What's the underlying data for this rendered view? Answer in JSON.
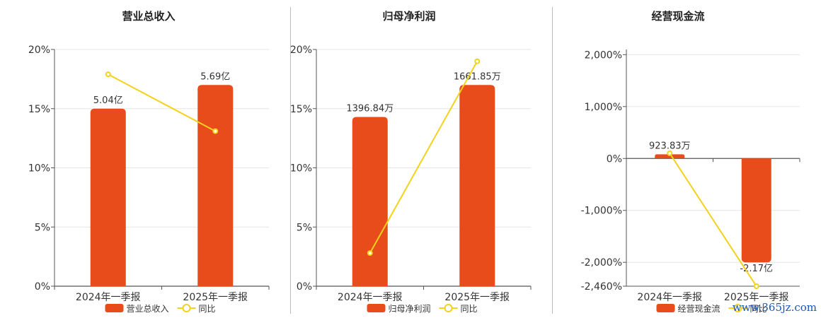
{
  "colors": {
    "bar": "#e84c1a",
    "line": "#f2d21b",
    "grid": "#e6e6e6",
    "axis": "#555555",
    "text": "#333333"
  },
  "watermark": "www.365jz.com",
  "chart_data": [
    {
      "type": "bar",
      "title": "营业总收入",
      "categories": [
        "2024年一季报",
        "2025年一季报"
      ],
      "ylim": [
        0,
        20
      ],
      "yticks": [
        0,
        5,
        10,
        15,
        20
      ],
      "ytick_labels": [
        "0%",
        "5%",
        "10%",
        "15%",
        "20%"
      ],
      "bar_values": [
        15.0,
        17.0
      ],
      "bar_labels": [
        "5.04亿",
        "5.69亿"
      ],
      "line_values": [
        17.9,
        13.1
      ],
      "legend": [
        "营业总收入",
        "同比"
      ],
      "legend_position": "bottom-center",
      "grid": true
    },
    {
      "type": "bar",
      "title": "归母净利润",
      "categories": [
        "2024年一季报",
        "2025年一季报"
      ],
      "ylim": [
        0,
        20
      ],
      "yticks": [
        0,
        5,
        10,
        15,
        20
      ],
      "ytick_labels": [
        "0%",
        "5%",
        "10%",
        "15%",
        "20%"
      ],
      "bar_values": [
        14.3,
        17.0
      ],
      "bar_labels": [
        "1396.84万",
        "1661.85万"
      ],
      "line_values": [
        2.8,
        19.0
      ],
      "legend": [
        "归母净利润",
        "同比"
      ],
      "legend_position": "bottom-center",
      "grid": true
    },
    {
      "type": "bar",
      "title": "经营现金流",
      "categories": [
        "2024年一季报",
        "2025年一季报"
      ],
      "ylim": [
        -2460,
        2100
      ],
      "yticks": [
        2000,
        1000,
        0,
        -1000,
        -2000,
        -2460
      ],
      "ytick_labels": [
        "2,000%",
        "1,000%",
        "0%",
        "-1,000%",
        "-2,000%",
        "-2,460%"
      ],
      "bar_values": [
        80,
        -2000
      ],
      "bar_labels": [
        "923.83万",
        "-2.17亿"
      ],
      "line_values": [
        100,
        -2460
      ],
      "legend": [
        "经营现金流",
        "同比"
      ],
      "legend_position": "bottom-center",
      "grid": true
    }
  ]
}
